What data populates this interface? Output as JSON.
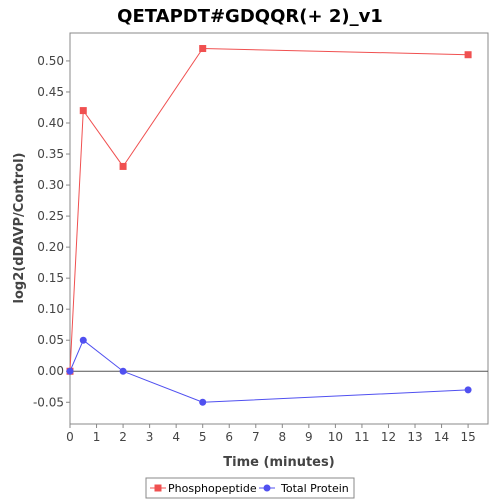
{
  "chart_data": {
    "type": "line",
    "title": "QETAPDT#GDQQR(+ 2)_v1",
    "xlabel": "Time (minutes)",
    "ylabel": "log2(dDAVP/Control)",
    "xlim": [
      0,
      15.75
    ],
    "ylim": [
      -0.085,
      0.545
    ],
    "xticks": [
      0,
      1,
      2,
      3,
      4,
      5,
      6,
      7,
      8,
      9,
      10,
      11,
      12,
      13,
      14,
      15
    ],
    "yticks": [
      -0.05,
      0.0,
      0.05,
      0.1,
      0.15,
      0.2,
      0.25,
      0.3,
      0.35,
      0.4,
      0.45,
      0.5
    ],
    "ytick_labels": [
      "-0.05",
      "0.00",
      "0.05",
      "0.10",
      "0.15",
      "0.20",
      "0.25",
      "0.30",
      "0.35",
      "0.40",
      "0.45",
      "0.50"
    ],
    "zero_line": true,
    "grid": false,
    "legend_position": "bottom",
    "series": [
      {
        "name": "Phosphopeptide",
        "color": "#f05050",
        "marker": "square",
        "x": [
          0,
          0.5,
          2,
          5,
          15
        ],
        "y": [
          0.0,
          0.42,
          0.33,
          0.52,
          0.51
        ]
      },
      {
        "name": "Total Protein",
        "color": "#5050f0",
        "marker": "circle",
        "x": [
          0,
          0.5,
          2,
          5,
          15
        ],
        "y": [
          0.0,
          0.05,
          0.0,
          -0.05,
          -0.03
        ]
      }
    ]
  }
}
